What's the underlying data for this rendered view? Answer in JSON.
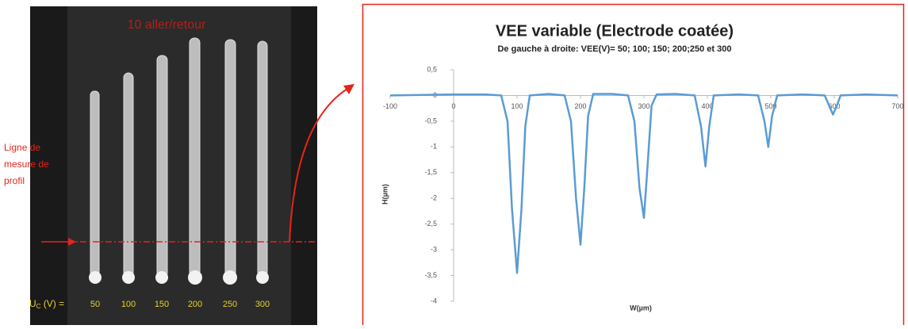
{
  "photo": {
    "title": "10 aller/retour",
    "annotation": [
      "Ligne de",
      "mesure de",
      "profil"
    ],
    "voltage_label": {
      "symbol": "U",
      "subscript": "C",
      "rest": " (V) ="
    },
    "voltages": [
      "50",
      "100",
      "150",
      "200",
      "250",
      "300"
    ]
  },
  "chart_data": {
    "type": "line",
    "title": "VEE variable (Electrode coatée)",
    "subtitle": "De gauche à droite: VEE(V)= 50; 100; 150; 200;250 et 300",
    "x_label": "W(µm)",
    "y_label": "H(µm)",
    "x": [
      -100,
      0,
      50,
      75,
      85,
      92,
      100,
      107,
      113,
      120,
      150,
      175,
      185,
      193,
      200,
      206,
      212,
      220,
      250,
      275,
      285,
      293,
      300,
      305,
      312,
      320,
      350,
      380,
      390,
      397,
      403,
      410,
      450,
      480,
      490,
      496,
      502,
      510,
      550,
      585,
      592,
      598,
      604,
      610,
      650,
      700
    ],
    "series": [
      {
        "color": "#5b9bd5",
        "values": [
          0,
          0.02,
          0.02,
          0,
          -0.5,
          -2.2,
          -3.45,
          -2.2,
          -0.6,
          0,
          0.03,
          0,
          -0.5,
          -2,
          -2.9,
          -1.8,
          -0.4,
          0.03,
          0.03,
          0,
          -0.5,
          -1.8,
          -2.38,
          -1.5,
          -0.2,
          0.02,
          0.03,
          0,
          -0.6,
          -1.38,
          -0.6,
          0,
          0.02,
          0,
          -0.5,
          -1,
          -0.4,
          0,
          0.02,
          0,
          -0.2,
          -0.37,
          -0.2,
          0,
          0.02,
          0
        ]
      }
    ],
    "xlim": [
      -100,
      700
    ],
    "xticks": [
      -100,
      0,
      100,
      200,
      300,
      400,
      500,
      600,
      700
    ],
    "ylim": [
      -4,
      0.5
    ],
    "yticks": [
      {
        "value": 0.5,
        "label": "0,5"
      },
      0,
      {
        "value": -0.5,
        "label": "-0,5"
      },
      -1,
      {
        "value": -1.5,
        "label": "-1,5"
      },
      -2,
      {
        "value": -2.5,
        "label": "-2,5"
      },
      -3,
      {
        "value": -3.5,
        "label": "-3,5"
      },
      -4
    ],
    "grid": false
  }
}
